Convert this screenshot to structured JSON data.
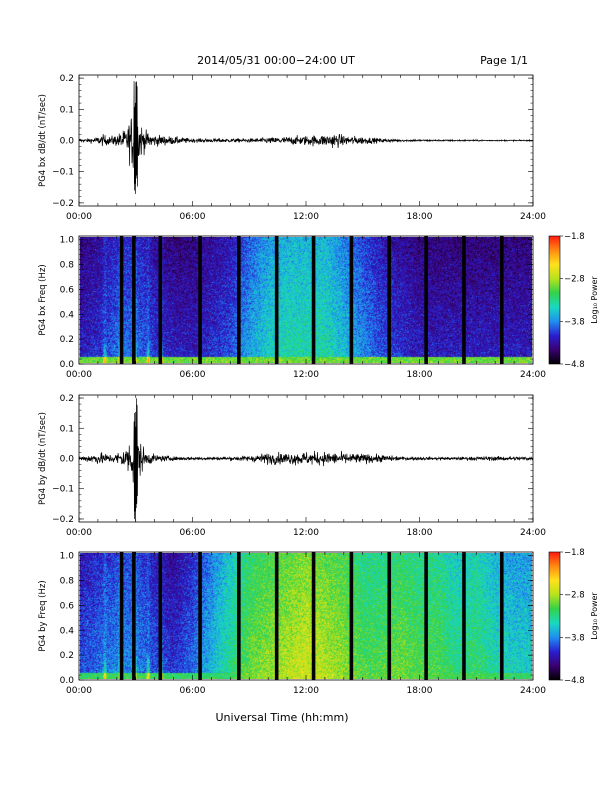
{
  "header": {
    "title": "2014/05/31  00:00−24:00 UT",
    "page_label": "Page 1/1"
  },
  "footer": {
    "xlabel": "Universal Time (hh:mm)"
  },
  "colors": {
    "trace": "#000000",
    "colorbar_stops": [
      "#000000",
      "#3a0070",
      "#2a1fd0",
      "#1f8ff0",
      "#19d9c0",
      "#33d24a",
      "#b8e21c",
      "#ffe21c",
      "#ff8a10",
      "#ff1a10"
    ]
  },
  "chart_data": [
    {
      "type": "line",
      "panel": "bx-waveform",
      "ylabel": "PG4 bx dB/dt (nT/sec)",
      "x_ticks": [
        "00:00",
        "06:00",
        "12:00",
        "18:00",
        "24:00"
      ],
      "xlim": [
        0,
        24
      ],
      "ylim": [
        -0.21,
        0.21
      ],
      "y_ticks": [
        "0.2",
        "0.1",
        "0.0",
        "−0.1",
        "−0.2"
      ],
      "y_tick_values": [
        0.2,
        0.1,
        0.0,
        -0.1,
        -0.2
      ],
      "series": [
        {
          "x": [
            0,
            0.5,
            1.0,
            1.3,
            1.6,
            2.0,
            2.5,
            2.8,
            2.95,
            3.05,
            3.2,
            3.5,
            4.0,
            5.0,
            6.0,
            7.0,
            8.0,
            9.0,
            10.0,
            11.0,
            12.0,
            13.0,
            13.5,
            14.0,
            15.0,
            16.0,
            17.0,
            18.0,
            20.0,
            22.0,
            24.0
          ],
          "amplitude": [
            0.01,
            0.01,
            0.02,
            0.03,
            0.02,
            0.03,
            0.06,
            0.14,
            0.2,
            0.2,
            0.1,
            0.05,
            0.03,
            0.02,
            0.01,
            0.01,
            0.01,
            0.01,
            0.015,
            0.02,
            0.025,
            0.03,
            0.04,
            0.025,
            0.02,
            0.01,
            0.006,
            0.005,
            0.004,
            0.003,
            0.003
          ]
        }
      ]
    },
    {
      "type": "heatmap",
      "panel": "bx-spectrogram",
      "ylabel": "PG4 bx Freq (Hz)",
      "x_ticks": [
        "00:00",
        "06:00",
        "12:00",
        "18:00",
        "24:00"
      ],
      "xlim": [
        0,
        24
      ],
      "ylim": [
        0,
        1.03
      ],
      "y_ticks": [
        "1.0",
        "0.8",
        "0.6",
        "0.4",
        "0.2",
        "0.0"
      ],
      "y_tick_values": [
        1.0,
        0.8,
        0.6,
        0.4,
        0.2,
        0.0
      ],
      "colorbar": {
        "label": "Log₁₀ Power",
        "ticks": [
          "−1.8",
          "−2.8",
          "−3.8",
          "−4.8"
        ],
        "tick_values": [
          -1.8,
          -2.8,
          -3.8,
          -4.8
        ],
        "range": [
          -4.8,
          -1.8
        ]
      },
      "data_gaps_hours": [
        2.25,
        2.9,
        4.3,
        6.4,
        8.45,
        10.45,
        12.4,
        14.4,
        16.4,
        18.35,
        20.35,
        22.35
      ],
      "mean_level_by_hour": [
        -4.3,
        -4.2,
        -4.0,
        -4.0,
        -4.2,
        -4.3,
        -4.3,
        -4.2,
        -4.1,
        -3.8,
        -3.6,
        -3.5,
        -3.5,
        -3.5,
        -3.7,
        -3.9,
        -4.1,
        -4.2,
        -4.3,
        -4.3,
        -4.3,
        -4.3,
        -4.3,
        -4.3,
        -4.3
      ],
      "low_freq_enhancement": -3.1,
      "pc1_event_hours": [
        1.3,
        2.1,
        2.9,
        3.6,
        4.3
      ]
    },
    {
      "type": "line",
      "panel": "by-waveform",
      "ylabel": "PG4 by dB/dt (nT/sec)",
      "x_ticks": [
        "00:00",
        "06:00",
        "12:00",
        "18:00",
        "24:00"
      ],
      "xlim": [
        0,
        24
      ],
      "ylim": [
        -0.21,
        0.21
      ],
      "y_ticks": [
        "0.2",
        "0.1",
        "0.0",
        "−0.1",
        "−0.2"
      ],
      "y_tick_values": [
        0.2,
        0.1,
        0.0,
        -0.1,
        -0.2
      ],
      "series": [
        {
          "x": [
            0,
            0.5,
            1.0,
            1.3,
            1.6,
            2.0,
            2.5,
            2.8,
            2.95,
            3.05,
            3.2,
            3.5,
            4.0,
            5.0,
            6.0,
            7.0,
            8.0,
            9.0,
            10.0,
            11.0,
            12.0,
            13.0,
            14.0,
            15.0,
            16.0,
            17.0,
            18.0,
            20.0,
            22.0,
            24.0
          ],
          "amplitude": [
            0.01,
            0.02,
            0.03,
            0.03,
            0.02,
            0.03,
            0.06,
            0.12,
            0.2,
            0.2,
            0.1,
            0.04,
            0.02,
            0.01,
            0.008,
            0.008,
            0.01,
            0.015,
            0.03,
            0.03,
            0.035,
            0.035,
            0.03,
            0.025,
            0.02,
            0.01,
            0.008,
            0.008,
            0.012,
            0.01
          ]
        }
      ]
    },
    {
      "type": "heatmap",
      "panel": "by-spectrogram",
      "ylabel": "PG4 by Freq (Hz)",
      "x_ticks": [
        "00:00",
        "06:00",
        "12:00",
        "18:00",
        "24:00"
      ],
      "xlim": [
        0,
        24
      ],
      "ylim": [
        0,
        1.03
      ],
      "y_ticks": [
        "1.0",
        "0.8",
        "0.6",
        "0.4",
        "0.2",
        "0.0"
      ],
      "y_tick_values": [
        1.0,
        0.8,
        0.6,
        0.4,
        0.2,
        0.0
      ],
      "colorbar": {
        "label": "Log₁₀ Power",
        "ticks": [
          "−1.8",
          "−2.8",
          "−3.8",
          "−4.8"
        ],
        "tick_values": [
          -1.8,
          -2.8,
          -3.8,
          -4.8
        ],
        "range": [
          -4.8,
          -1.8
        ]
      },
      "data_gaps_hours": [
        2.25,
        2.9,
        4.3,
        6.4,
        8.45,
        10.45,
        12.4,
        14.4,
        16.4,
        18.35,
        20.35,
        22.35
      ],
      "mean_level_by_hour": [
        -4.1,
        -4.0,
        -3.9,
        -3.9,
        -4.1,
        -4.2,
        -4.0,
        -3.7,
        -3.4,
        -3.1,
        -3.0,
        -2.9,
        -2.8,
        -2.9,
        -3.0,
        -3.2,
        -3.2,
        -3.1,
        -3.2,
        -3.2,
        -3.4,
        -3.3,
        -3.5,
        -3.6,
        -3.6
      ],
      "low_freq_enhancement": -3.3,
      "pc1_event_hours": [
        1.3,
        2.1,
        2.9,
        3.6,
        4.3
      ]
    }
  ]
}
